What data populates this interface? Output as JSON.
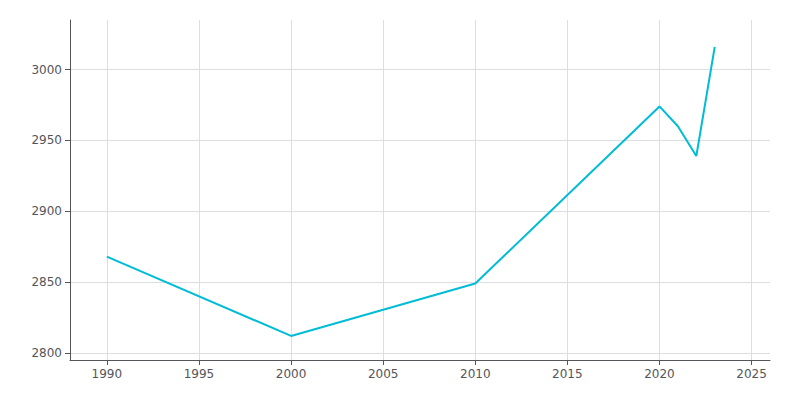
{
  "chart_data": {
    "type": "line",
    "x": [
      1990,
      2000,
      2010,
      2020,
      2021,
      2022,
      2023
    ],
    "values": [
      2868,
      2812,
      2849,
      2974,
      2960,
      2939,
      3016
    ],
    "color": "#00bcd4",
    "xlim": [
      1988,
      2026
    ],
    "ylim": [
      2795,
      3035
    ],
    "xticks": [
      1990,
      1995,
      2000,
      2005,
      2010,
      2015,
      2020,
      2025
    ],
    "yticks": [
      2800,
      2850,
      2900,
      2950,
      3000
    ],
    "grid": true
  }
}
